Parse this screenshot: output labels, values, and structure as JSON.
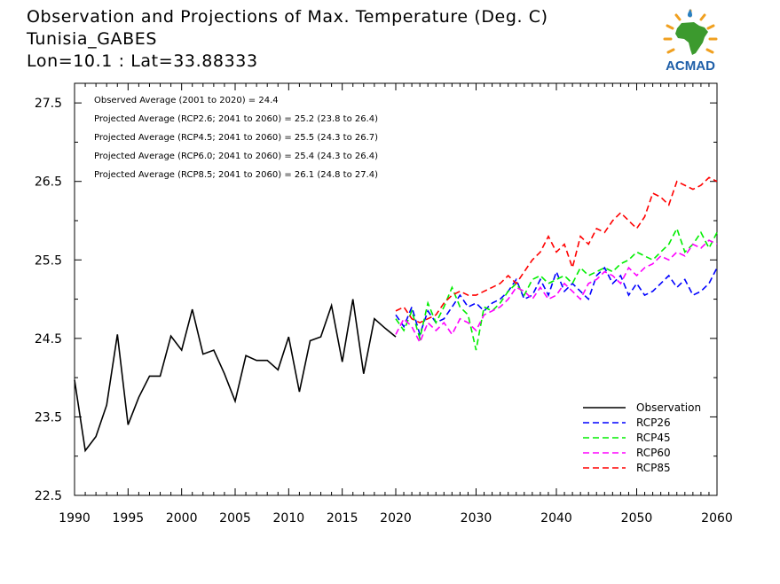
{
  "header": {
    "title": "Observation and Projections of Max. Temperature (Deg. C)",
    "station": "Tunisia_GABES",
    "coords": "Lon=10.1 : Lat=33.88333"
  },
  "logo": {
    "text": "ACMAD",
    "icon": "acmad-africa-sun-logo"
  },
  "stats": [
    "Observed Average (2001 to 2020) = 24.4",
    "Projected Average (RCP2.6; 2041 to 2060) = 25.2 (23.8 to 26.4)",
    "Projected Average (RCP4.5; 2041 to 2060) = 25.5 (24.3 to 26.7)",
    "Projected Average (RCP6.0; 2041 to 2060) = 25.4 (24.3 to 26.4)",
    "Projected Average (RCP8.5; 2041 to 2060) = 26.1 (24.8 to 27.4)"
  ],
  "chart_data": {
    "type": "line",
    "xlabel": "",
    "ylabel": "",
    "xlim": [
      1990,
      2060
    ],
    "ylim": [
      22.5,
      27.75
    ],
    "xticks_major": [
      1990,
      1995,
      2000,
      2005,
      2010,
      2015,
      2020,
      2030,
      2040,
      2050,
      2060
    ],
    "yticks": [
      22.5,
      23.5,
      24.5,
      25.5,
      26.5,
      27.5
    ],
    "grid": false,
    "legend": "bottom-right",
    "series": [
      {
        "name": "Observation",
        "color": "#000000",
        "dash": false,
        "x": [
          1990,
          1991,
          1992,
          1993,
          1994,
          1995,
          1996,
          1997,
          1998,
          1999,
          2000,
          2001,
          2002,
          2003,
          2004,
          2005,
          2006,
          2007,
          2008,
          2009,
          2010,
          2011,
          2012,
          2013,
          2014,
          2015,
          2016,
          2017,
          2018,
          2019,
          2020
        ],
        "y": [
          23.97,
          23.07,
          23.25,
          23.65,
          24.55,
          23.4,
          23.75,
          24.02,
          24.02,
          24.53,
          24.35,
          24.87,
          24.3,
          24.35,
          24.05,
          23.7,
          24.28,
          24.22,
          24.22,
          24.1,
          24.52,
          23.82,
          24.47,
          24.52,
          24.92,
          24.2,
          25.0,
          24.05,
          24.75,
          24.63,
          24.52
        ]
      },
      {
        "name": "RCP26",
        "color": "#0000ff",
        "dash": true,
        "x": [
          2020,
          2021,
          2022,
          2023,
          2024,
          2025,
          2026,
          2027,
          2028,
          2029,
          2030,
          2031,
          2032,
          2033,
          2034,
          2035,
          2036,
          2037,
          2038,
          2039,
          2040,
          2041,
          2042,
          2043,
          2044,
          2045,
          2046,
          2047,
          2048,
          2049,
          2050,
          2051,
          2052,
          2053,
          2054,
          2055,
          2056,
          2057,
          2058,
          2059,
          2060
        ],
        "y": [
          24.8,
          24.65,
          24.9,
          24.55,
          24.85,
          24.7,
          24.75,
          24.9,
          25.05,
          24.9,
          24.95,
          24.85,
          24.95,
          25.0,
          25.1,
          25.25,
          25.0,
          25.05,
          25.25,
          25.05,
          25.35,
          25.1,
          25.2,
          25.1,
          25.0,
          25.3,
          25.4,
          25.2,
          25.3,
          25.05,
          25.2,
          25.05,
          25.1,
          25.2,
          25.3,
          25.15,
          25.25,
          25.05,
          25.1,
          25.2,
          25.4
        ]
      },
      {
        "name": "RCP45",
        "color": "#00ee00",
        "dash": true,
        "x": [
          2020,
          2021,
          2022,
          2023,
          2024,
          2025,
          2026,
          2027,
          2028,
          2029,
          2030,
          2031,
          2032,
          2033,
          2034,
          2035,
          2036,
          2037,
          2038,
          2039,
          2040,
          2041,
          2042,
          2043,
          2044,
          2045,
          2046,
          2047,
          2048,
          2049,
          2050,
          2051,
          2052,
          2053,
          2054,
          2055,
          2056,
          2057,
          2058,
          2059,
          2060
        ],
        "y": [
          24.75,
          24.6,
          24.85,
          24.5,
          24.95,
          24.7,
          24.9,
          25.15,
          24.9,
          24.8,
          24.35,
          24.9,
          24.85,
          24.95,
          25.1,
          25.2,
          25.05,
          25.25,
          25.3,
          25.2,
          25.25,
          25.3,
          25.2,
          25.4,
          25.3,
          25.35,
          25.4,
          25.35,
          25.45,
          25.5,
          25.6,
          25.55,
          25.5,
          25.6,
          25.7,
          25.9,
          25.6,
          25.7,
          25.85,
          25.65,
          25.85
        ]
      },
      {
        "name": "RCP60",
        "color": "#ff00ff",
        "dash": true,
        "x": [
          2020,
          2021,
          2022,
          2023,
          2024,
          2025,
          2026,
          2027,
          2028,
          2029,
          2030,
          2031,
          2032,
          2033,
          2034,
          2035,
          2036,
          2037,
          2038,
          2039,
          2040,
          2041,
          2042,
          2043,
          2044,
          2045,
          2046,
          2047,
          2048,
          2049,
          2050,
          2051,
          2052,
          2053,
          2054,
          2055,
          2056,
          2057,
          2058,
          2059,
          2060
        ],
        "y": [
          24.55,
          24.75,
          24.65,
          24.45,
          24.7,
          24.6,
          24.7,
          24.55,
          24.75,
          24.7,
          24.6,
          24.8,
          24.85,
          24.9,
          25.0,
          25.15,
          25.1,
          25.0,
          25.15,
          25.0,
          25.05,
          25.2,
          25.1,
          25.0,
          25.2,
          25.25,
          25.35,
          25.3,
          25.2,
          25.4,
          25.3,
          25.4,
          25.45,
          25.55,
          25.5,
          25.6,
          25.55,
          25.7,
          25.65,
          25.75,
          25.7
        ]
      },
      {
        "name": "RCP85",
        "color": "#ff0000",
        "dash": true,
        "x": [
          2020,
          2021,
          2022,
          2023,
          2024,
          2025,
          2026,
          2027,
          2028,
          2029,
          2030,
          2031,
          2032,
          2033,
          2034,
          2035,
          2036,
          2037,
          2038,
          2039,
          2040,
          2041,
          2042,
          2043,
          2044,
          2045,
          2046,
          2047,
          2048,
          2049,
          2050,
          2051,
          2052,
          2053,
          2054,
          2055,
          2056,
          2057,
          2058,
          2059,
          2060
        ],
        "y": [
          24.85,
          24.9,
          24.75,
          24.7,
          24.75,
          24.8,
          24.95,
          25.05,
          25.1,
          25.05,
          25.05,
          25.1,
          25.15,
          25.2,
          25.3,
          25.2,
          25.35,
          25.5,
          25.6,
          25.8,
          25.6,
          25.7,
          25.4,
          25.8,
          25.7,
          25.9,
          25.85,
          26.0,
          26.1,
          26.0,
          25.9,
          26.05,
          26.35,
          26.3,
          26.2,
          26.5,
          26.45,
          26.4,
          26.45,
          26.55,
          26.5
        ]
      }
    ]
  }
}
